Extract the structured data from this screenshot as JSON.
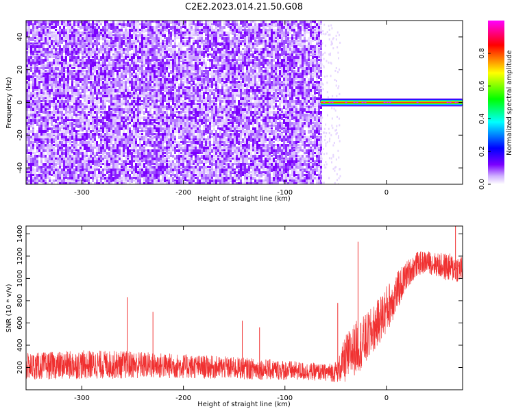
{
  "title": "C2E2.2023.014.21.50.G08",
  "colorbar": {
    "label": "Normalized spectral amplitude",
    "ticks": [
      "0.0",
      "0.2",
      "0.4",
      "0.6",
      "0.8"
    ]
  },
  "chart_data": [
    {
      "type": "heatmap",
      "xlabel": "Height of straight line (km)",
      "ylabel": "Frequency (Hz)",
      "xlim": [
        -355,
        75
      ],
      "ylim": [
        -50,
        50
      ],
      "x_ticks": [
        "-300",
        "-200",
        "-100",
        "0"
      ],
      "y_ticks": [
        "40",
        "20",
        "0",
        "-20",
        "-40"
      ],
      "noise_region_x": [
        -355,
        -65
      ],
      "signal_region_x": [
        -65,
        75
      ],
      "signal_frequency": 0,
      "colormap": [
        "#ffffff",
        "#7b00ff",
        "#0000ff",
        "#00ffff",
        "#00ff00",
        "#ffff00",
        "#ff0000",
        "#ff00ff"
      ]
    },
    {
      "type": "line",
      "xlabel": "Height of straight line (km)",
      "ylabel": "SNR (10 * v/v)",
      "xlim": [
        -355,
        75
      ],
      "ylim": [
        0,
        1470
      ],
      "x_ticks": [
        "-300",
        "-200",
        "-100",
        "0"
      ],
      "y_ticks": [
        "1400",
        "1200",
        "1000",
        "800",
        "600",
        "400",
        "200"
      ],
      "color": "#f03030",
      "series": [
        {
          "x": [
            -355,
            -300,
            -250,
            -200,
            -150,
            -100,
            -60,
            -48,
            -40,
            -30,
            -20,
            -10,
            0,
            10,
            20,
            30,
            40,
            50,
            60,
            75
          ],
          "mean": [
            210,
            225,
            225,
            210,
            195,
            175,
            155,
            165,
            280,
            380,
            450,
            580,
            720,
            870,
            1030,
            1130,
            1150,
            1120,
            1100,
            1080
          ],
          "spread": [
            120,
            130,
            125,
            110,
            100,
            90,
            75,
            100,
            220,
            240,
            230,
            210,
            220,
            180,
            130,
            110,
            100,
            110,
            130,
            120
          ]
        }
      ],
      "spikes": [
        {
          "x": -255,
          "y": 830
        },
        {
          "x": -230,
          "y": 700
        },
        {
          "x": -142,
          "y": 620
        },
        {
          "x": -125,
          "y": 560
        },
        {
          "x": -48,
          "y": 780
        },
        {
          "x": -28,
          "y": 1330
        },
        {
          "x": 68,
          "y": 1470
        }
      ]
    }
  ]
}
